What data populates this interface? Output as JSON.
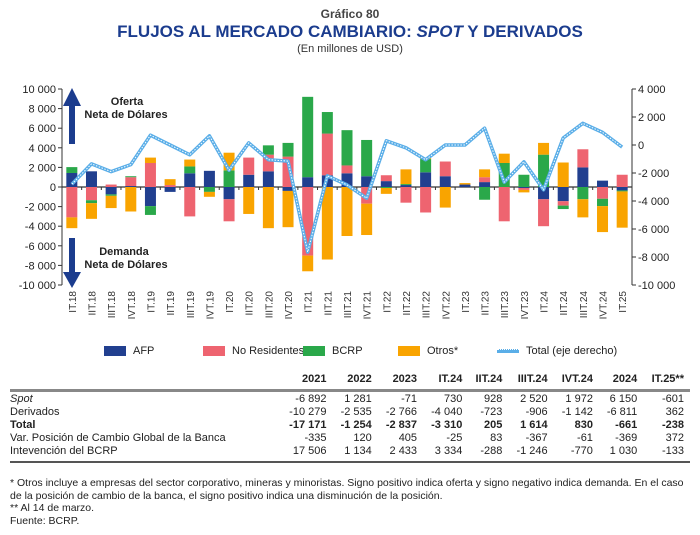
{
  "header": {
    "kicker": "Gráfico 80",
    "title_main": "FLUJOS AL MERCADO CAMBIARIO: ",
    "title_italic": "SPOT",
    "title_end": " Y DERIVADOS",
    "subtitle": "(En millones de USD)"
  },
  "annotations": {
    "top_line1": "Oferta",
    "top_line2": "Neta de Dólares",
    "bottom_line1": "Demanda",
    "bottom_line2": "Neta de Dólares"
  },
  "chart_data": {
    "type": "bar",
    "stacked": true,
    "categories": [
      "IT.18",
      "IIT.18",
      "IIIT.18",
      "IVT.18",
      "IT.19",
      "IIT.19",
      "IIIT.19",
      "IVT.19",
      "IT.20",
      "IIT.20",
      "IIIT.20",
      "IVT.20",
      "IT.21",
      "IIT.21",
      "IIIT.21",
      "IVT.21",
      "IT.22",
      "IIT.22",
      "IIIT.22",
      "IVT.22",
      "IT.23",
      "IIT.23",
      "IIIT.23",
      "IVT.23",
      "IT.24",
      "IIT.24",
      "IIIT.24",
      "IVT.24",
      "IT.25"
    ],
    "series": [
      {
        "name": "AFP",
        "color": "#213f8f",
        "values": [
          1430,
          1600,
          -750,
          100,
          -1950,
          -500,
          1400,
          1650,
          -1250,
          1250,
          1600,
          -400,
          1000,
          1200,
          1400,
          1100,
          600,
          200,
          1500,
          1100,
          250,
          500,
          0,
          -100,
          -1250,
          -1450,
          2000,
          650,
          -350
        ]
      },
      {
        "name": "No Residentes",
        "color": "#ee6470",
        "values": [
          -3100,
          -1350,
          250,
          900,
          2450,
          200,
          -3000,
          0,
          -2250,
          1750,
          1700,
          3100,
          -7000,
          4250,
          800,
          -1700,
          600,
          -1600,
          -2600,
          1500,
          0,
          500,
          -3500,
          -200,
          -2750,
          -450,
          1850,
          -1200,
          1250
        ]
      },
      {
        "name": "BCRP",
        "color": "#2aa84a",
        "values": [
          600,
          -300,
          -150,
          100,
          -900,
          0,
          700,
          -500,
          1700,
          0,
          950,
          1400,
          8200,
          2200,
          3600,
          3700,
          -100,
          100,
          1350,
          0,
          0,
          -1300,
          2450,
          1250,
          3300,
          -350,
          -1250,
          -750,
          -100
        ]
      },
      {
        "name": "Otros*",
        "color": "#f9a400",
        "values": [
          -1100,
          -1600,
          -1250,
          -2500,
          550,
          600,
          700,
          -500,
          1800,
          -2750,
          -4200,
          -3700,
          -1600,
          -7400,
          -5000,
          -3200,
          -600,
          1500,
          100,
          -2100,
          150,
          800,
          950,
          -250,
          1200,
          2500,
          -1850,
          -2650,
          -3700
        ]
      }
    ],
    "line": {
      "name": "Total (eje derecho)",
      "color": "#5aaee8",
      "axis": "right",
      "values": [
        -2800,
        -1350,
        -1900,
        -1400,
        700,
        0,
        -700,
        650,
        -1800,
        150,
        -1050,
        -1150,
        -7650,
        -2200,
        -2850,
        -3800,
        300,
        -200,
        -1050,
        0,
        0,
        1200,
        -2650,
        -1200,
        -3200,
        500,
        1550,
        900,
        -150
      ]
    },
    "yleft": {
      "min": -10000,
      "max": 10000,
      "step": 2000,
      "ticks": [
        "10 000",
        "8 000",
        "6 000",
        "4 000",
        "2 000",
        "0",
        "-2 000",
        "-4 000",
        "-6 000",
        "-8 000",
        "-10 000"
      ]
    },
    "yright": {
      "min": -10000,
      "max": 4000,
      "step": 2000,
      "ticks": [
        "4 000",
        "2 000",
        "0",
        "-2 000",
        "-4 000",
        "-6 000",
        "-8 000",
        "-10 000"
      ]
    },
    "legend_position": "bottom"
  },
  "table": {
    "columns": [
      "",
      "2021",
      "2022",
      "2023",
      "IT.24",
      "IIT.24",
      "IIIT.24",
      "IVT.24",
      "2024",
      "IT.25**"
    ],
    "rows": [
      {
        "label": "Spot",
        "values": [
          "-6 892",
          "1 281",
          "-71",
          "730",
          "928",
          "2 520",
          "1 972",
          "6 150",
          "-601"
        ]
      },
      {
        "label": "Derivados",
        "values": [
          "-10 279",
          "-2 535",
          "-2 766",
          "-4 040",
          "-723",
          "-906",
          "-1 142",
          "-6 811",
          "362"
        ]
      },
      {
        "label": "Total",
        "values": [
          "-17 171",
          "-1 254",
          "-2 837",
          "-3 310",
          "205",
          "1 614",
          "830",
          "-661",
          "-238"
        ]
      },
      {
        "label": "Var. Posición de Cambio Global de la Banca",
        "values": [
          "-335",
          "120",
          "405",
          "-25",
          "83",
          "-367",
          "-61",
          "-369",
          "372"
        ]
      },
      {
        "label": "Intevención del BCRP",
        "values": [
          "17 506",
          "1 134",
          "2 433",
          "3 334",
          "-288",
          "-1 246",
          "-770",
          "1 030",
          "-133"
        ]
      }
    ]
  },
  "notes": {
    "n1": "* Otros incluye a empresas del sector corporativo, mineras y minoristas. Signo positivo indica oferta y signo negativo indica demanda. En el caso de la posición de cambio de la banca, el signo positivo indica una disminución de la posición.",
    "n2": "** Al 14 de marzo.",
    "n3": "Fuente: BCRP."
  }
}
